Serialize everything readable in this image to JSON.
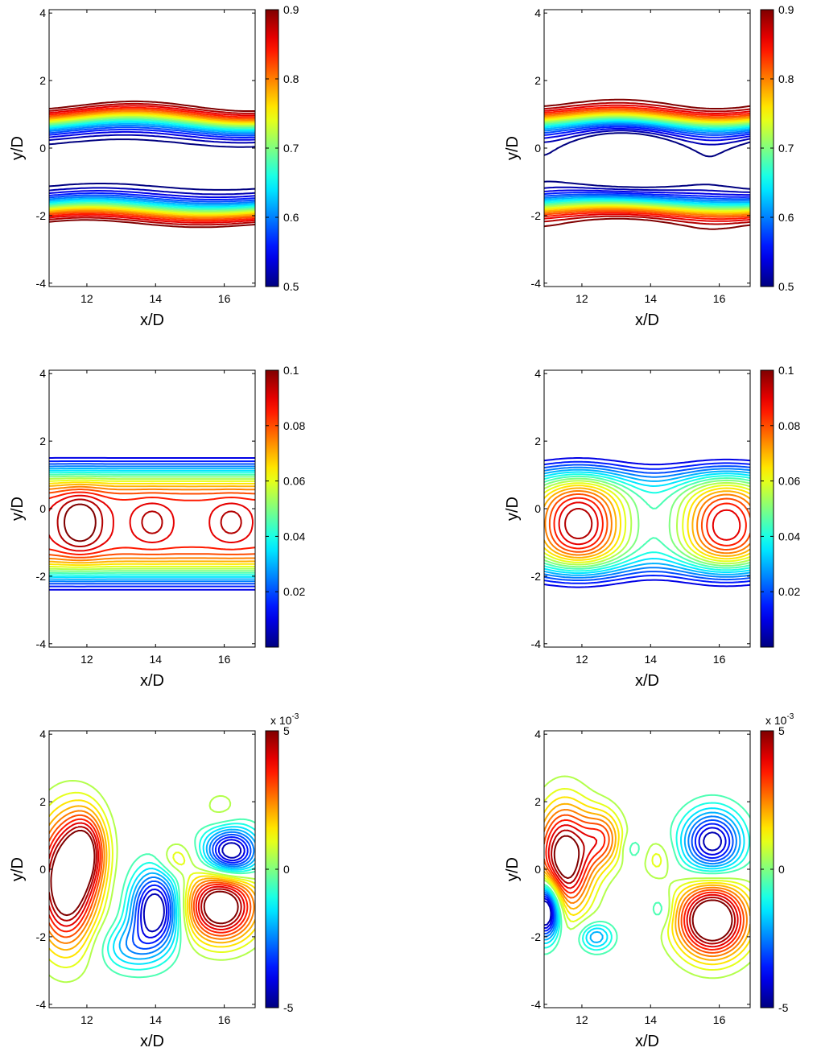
{
  "chart_data": [
    {
      "id": "p1",
      "row": 0,
      "col": 0,
      "type": "contour",
      "xlabel": "x/D",
      "ylabel": "y/D",
      "xlim": [
        10.9,
        16.9
      ],
      "ylim": [
        -4.1,
        4.1
      ],
      "xticks": [
        12,
        14,
        16
      ],
      "yticks": [
        -4,
        -2,
        0,
        2,
        4
      ],
      "colorbar": {
        "min": 0.5,
        "max": 0.9,
        "ticks": [
          0.5,
          0.6,
          0.7,
          0.8,
          0.9
        ],
        "tick_labels": [
          "0.5",
          "0.6",
          "0.7",
          "0.8",
          "0.9"
        ],
        "multiplier": ""
      },
      "field": "deficit",
      "levels": [
        0.5,
        0.52,
        0.54,
        0.56,
        0.58,
        0.6,
        0.62,
        0.64,
        0.66,
        0.68,
        0.7,
        0.72,
        0.74,
        0.76,
        0.78,
        0.8,
        0.82,
        0.84,
        0.86,
        0.88,
        0.9
      ]
    },
    {
      "id": "p2",
      "row": 0,
      "col": 1,
      "type": "contour",
      "xlabel": "x/D",
      "ylabel": "y/D",
      "xlim": [
        10.9,
        16.9
      ],
      "ylim": [
        -4.1,
        4.1
      ],
      "xticks": [
        12,
        14,
        16
      ],
      "yticks": [
        -4,
        -2,
        0,
        2,
        4
      ],
      "colorbar": {
        "min": 0.5,
        "max": 0.9,
        "ticks": [
          0.5,
          0.6,
          0.7,
          0.8,
          0.9
        ],
        "tick_labels": [
          "0.5",
          "0.6",
          "0.7",
          "0.8",
          "0.9"
        ],
        "multiplier": ""
      },
      "field": "deficit",
      "levels": [
        0.5,
        0.52,
        0.54,
        0.56,
        0.58,
        0.6,
        0.62,
        0.64,
        0.66,
        0.68,
        0.7,
        0.72,
        0.74,
        0.76,
        0.78,
        0.8,
        0.82,
        0.84,
        0.86,
        0.88,
        0.9
      ]
    },
    {
      "id": "p3",
      "row": 1,
      "col": 0,
      "type": "contour",
      "xlabel": "x/D",
      "ylabel": "y/D",
      "xlim": [
        10.9,
        16.9
      ],
      "ylim": [
        -4.1,
        4.1
      ],
      "xticks": [
        12,
        14,
        16
      ],
      "yticks": [
        -4,
        -2,
        0,
        2,
        4
      ],
      "colorbar": {
        "min": 0,
        "max": 0.1,
        "ticks": [
          0.02,
          0.04,
          0.06,
          0.08,
          0.1
        ],
        "tick_labels": [
          "0.02",
          "0.04",
          "0.06",
          "0.08",
          "0.1"
        ],
        "multiplier": ""
      },
      "field": "energy",
      "levels": [
        0.01,
        0.015,
        0.02,
        0.025,
        0.03,
        0.035,
        0.04,
        0.045,
        0.05,
        0.055,
        0.06,
        0.065,
        0.07,
        0.075,
        0.08,
        0.085,
        0.09,
        0.095,
        0.1
      ]
    },
    {
      "id": "p4",
      "row": 1,
      "col": 1,
      "type": "contour",
      "xlabel": "x/D",
      "ylabel": "y/D",
      "xlim": [
        10.9,
        16.9
      ],
      "ylim": [
        -4.1,
        4.1
      ],
      "xticks": [
        12,
        14,
        16
      ],
      "yticks": [
        -4,
        -2,
        0,
        2,
        4
      ],
      "colorbar": {
        "min": 0,
        "max": 0.1,
        "ticks": [
          0.02,
          0.04,
          0.06,
          0.08,
          0.1
        ],
        "tick_labels": [
          "0.02",
          "0.04",
          "0.06",
          "0.08",
          "0.1"
        ],
        "multiplier": ""
      },
      "field": "energy",
      "levels": [
        0.01,
        0.015,
        0.02,
        0.025,
        0.03,
        0.035,
        0.04,
        0.045,
        0.05,
        0.055,
        0.06,
        0.065,
        0.07,
        0.075,
        0.08,
        0.085,
        0.09,
        0.095,
        0.1
      ]
    },
    {
      "id": "p5",
      "row": 2,
      "col": 0,
      "type": "contour",
      "xlabel": "x/D",
      "ylabel": "y/D",
      "xlim": [
        10.9,
        16.9
      ],
      "ylim": [
        -4.1,
        4.1
      ],
      "xticks": [
        12,
        14,
        16
      ],
      "yticks": [
        -4,
        -2,
        0,
        2,
        4
      ],
      "colorbar": {
        "min": -5,
        "max": 5,
        "ticks": [
          -5,
          0,
          5
        ],
        "tick_labels": [
          "-5",
          "0",
          "5"
        ],
        "multiplier": "x 10",
        "multiplier_exp": "-3"
      },
      "field": "signed",
      "levels": [
        -4.5,
        -4,
        -3.5,
        -3,
        -2.5,
        -2,
        -1.5,
        -1,
        -0.5,
        0.5,
        1,
        1.5,
        2,
        2.5,
        3,
        3.5,
        4,
        4.5,
        5
      ]
    },
    {
      "id": "p6",
      "row": 2,
      "col": 1,
      "type": "contour",
      "xlabel": "x/D",
      "ylabel": "y/D",
      "xlim": [
        10.9,
        16.9
      ],
      "ylim": [
        -4.1,
        4.1
      ],
      "xticks": [
        12,
        14,
        16
      ],
      "yticks": [
        -4,
        -2,
        0,
        2,
        4
      ],
      "colorbar": {
        "min": -5,
        "max": 5,
        "ticks": [
          -5,
          0,
          5
        ],
        "tick_labels": [
          "-5",
          "0",
          "5"
        ],
        "multiplier": "x 10",
        "multiplier_exp": "-3"
      },
      "field": "signed",
      "levels": [
        -4.5,
        -4,
        -3.5,
        -3,
        -2.5,
        -2,
        -1.5,
        -1,
        -0.5,
        0.5,
        1,
        1.5,
        2,
        2.5,
        3,
        3.5,
        4,
        4.5,
        5
      ]
    }
  ]
}
